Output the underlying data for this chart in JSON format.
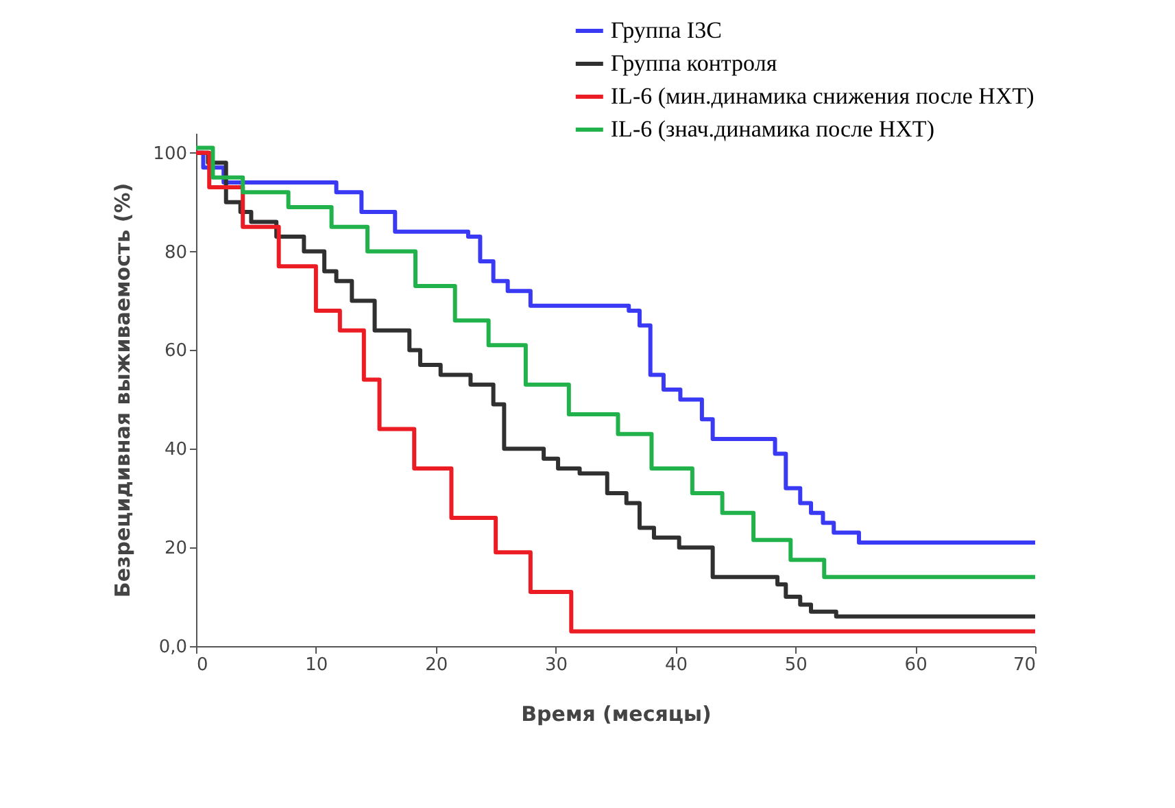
{
  "chart_data": {
    "type": "step",
    "xlabel": "Время (месяцы)",
    "ylabel": "Безрецидивная выживаемость (%)",
    "xlim": [
      0,
      70
    ],
    "ylim": [
      0,
      104
    ],
    "xticks": [
      0,
      10,
      20,
      30,
      40,
      50,
      60,
      70
    ],
    "yticks": [
      {
        "value": 0,
        "label": "0,0"
      },
      20,
      40,
      60,
      80,
      100
    ],
    "grid": false,
    "legend": "top right",
    "line_style": "solid",
    "marker": "none",
    "series": [
      {
        "name": "Группа I3C",
        "color": "#3a3af5",
        "x": [
          0,
          0.6,
          2.3,
          11.7,
          13.8,
          16.6,
          22.7,
          23.7,
          24.8,
          26.0,
          27.9,
          36.1,
          37.0,
          37.9,
          39.0,
          40.4,
          42.2,
          43.1,
          48.3,
          49.2,
          50.4,
          51.3,
          52.3,
          53.2,
          55.3,
          70
        ],
        "values": [
          100,
          97,
          94,
          92,
          88,
          84,
          83,
          78,
          74,
          72,
          69,
          68,
          65,
          55,
          52,
          50,
          46,
          42,
          39,
          32,
          29,
          27,
          25,
          23,
          21,
          21
        ]
      },
      {
        "name": "Группа контроля",
        "color": "#303030",
        "x": [
          0,
          1.0,
          2.5,
          3.7,
          4.6,
          6.7,
          9.0,
          10.7,
          11.7,
          13.0,
          14.9,
          17.8,
          18.7,
          20.4,
          22.9,
          24.8,
          25.7,
          27.5,
          29.0,
          30.2,
          32.0,
          34.3,
          35.9,
          37.0,
          38.2,
          40.3,
          43.1,
          48.5,
          49.2,
          50.4,
          51.3,
          53.4,
          70
        ],
        "values": [
          100,
          98,
          90,
          88,
          86,
          83,
          80,
          76,
          74,
          70,
          64,
          60,
          57,
          55,
          53,
          49,
          40,
          40,
          38,
          36,
          35,
          31,
          29,
          24,
          22,
          20,
          14,
          12.5,
          10,
          8.4,
          7,
          6,
          6
        ]
      },
      {
        "name": "IL-6 (мин.динамика снижения после НХТ)",
        "color": "#ec1c24",
        "x": [
          0,
          1.1,
          3.9,
          6.9,
          10.0,
          12.0,
          14.0,
          15.3,
          18.2,
          21.3,
          25.0,
          27.9,
          31.3,
          70
        ],
        "values": [
          100,
          93,
          85,
          77,
          68,
          64,
          54,
          44,
          36,
          26,
          19,
          11,
          3,
          3
        ]
      },
      {
        "name": "IL-6 (знач.динамика после НХТ)",
        "color": "#22b24c",
        "x": [
          0,
          1.4,
          3.9,
          7.7,
          11.3,
          14.3,
          18.3,
          21.6,
          24.4,
          27.5,
          31.1,
          35.2,
          38.0,
          41.4,
          43.9,
          46.5,
          49.6,
          52.4,
          70
        ],
        "values": [
          101,
          95,
          92,
          89,
          85,
          80,
          73,
          66,
          61,
          53,
          47,
          43,
          36,
          31,
          27,
          21.5,
          17.5,
          14,
          14
        ]
      }
    ]
  }
}
